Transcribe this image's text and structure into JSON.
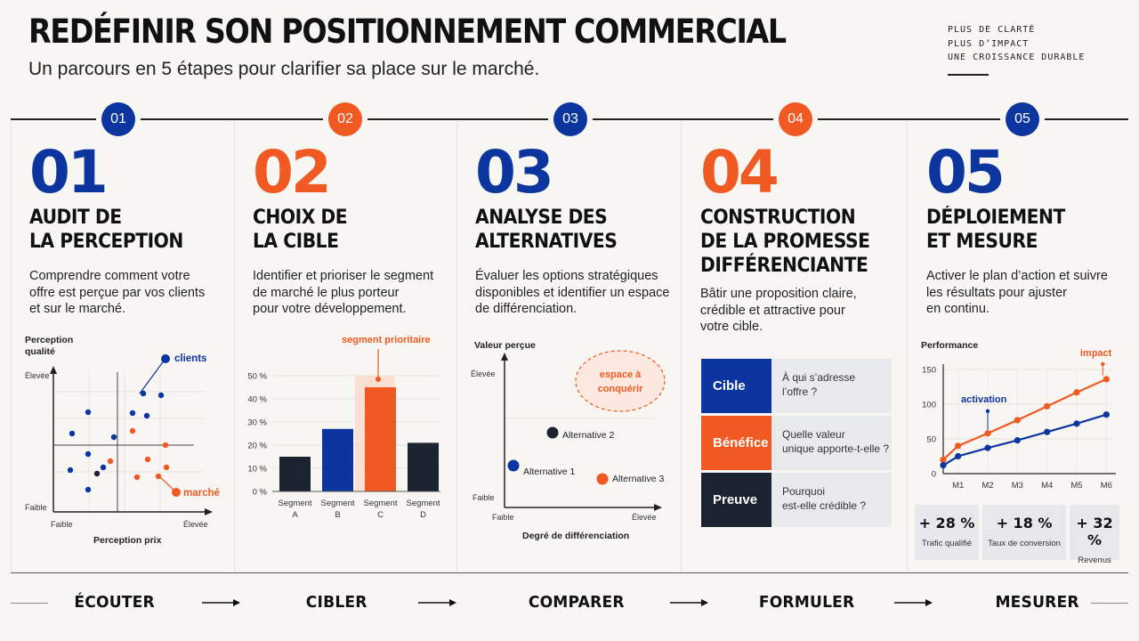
{
  "header": {
    "title": "REDÉFINIR SON POSITIONNEMENT COMMERCIAL",
    "subtitle": "Un parcours en 5 étapes pour clarifier sa place sur le marché.",
    "tagline": [
      "PLUS DE CLARTÉ",
      "PLUS D’IMPACT",
      "UNE CROISSANCE DURABLE"
    ]
  },
  "colors": {
    "blue": "#0c35a0",
    "orange": "#f05a22",
    "dark": "#1b2230"
  },
  "steps": [
    {
      "badge": "01",
      "number": "01",
      "title": "AUDIT DE\nLA PERCEPTION",
      "description": "Comprendre comment votre\noffre est perçue par vos clients\net sur le marché.",
      "accent": "blue"
    },
    {
      "badge": "02",
      "number": "02",
      "title": "CHOIX DE\nLA CIBLE",
      "description": "Identifier et prioriser le segment\nde marché le plus porteur\npour votre développement.",
      "accent": "orange"
    },
    {
      "badge": "03",
      "number": "03",
      "title": "ANALYSE DES\nALTERNATIVES",
      "description": "Évaluer les options stratégiques\ndisponibles et identifier un espace\nde différenciation.",
      "accent": "blue"
    },
    {
      "badge": "04",
      "number": "04",
      "title": "CONSTRUCTION\nDE LA PROMESSE\nDIFFÉRENCIANTE",
      "description": "Bâtir une proposition claire,\ncrédible et attractive pour\nvotre cible.",
      "accent": "orange"
    },
    {
      "badge": "05",
      "number": "05",
      "title": "DÉPLOIEMENT\nET MESURE",
      "description": "Activer le plan d’action et suivre\nles résultats pour ajuster\nen continu.",
      "accent": "blue"
    }
  ],
  "perception_map": {
    "y_title": [
      "Perception",
      "qualité"
    ],
    "y_high": "Élevée",
    "y_low": "Faible",
    "x_low": "Faible",
    "x_high": "Élevée",
    "x_title": "Perception prix",
    "clients_label": "clients",
    "market_label": "marché"
  },
  "segment_chart": {
    "annotation": "segment prioritaire",
    "y_ticks": [
      "50 %",
      "40 %",
      "30 %",
      "20 %",
      "10 %",
      "0 %"
    ],
    "categories": [
      [
        "Segment",
        "A"
      ],
      [
        "Segment",
        "B"
      ],
      [
        "Segment",
        "C"
      ],
      [
        "Segment",
        "D"
      ]
    ],
    "values": [
      15,
      27,
      45,
      21
    ],
    "bar_colors": [
      "dark",
      "blue",
      "orange",
      "dark"
    ],
    "ylim": [
      0,
      50
    ]
  },
  "alternatives_map": {
    "y_title": "Valeur perçue",
    "y_high": "Élevée",
    "y_low": "Faible",
    "x_low": "Faible",
    "x_high": "Élevée",
    "x_title": "Degré de différenciation",
    "bubble": [
      "espace à",
      "conquérir"
    ],
    "alternatives": [
      {
        "label": "Alternative 1",
        "color": "blue"
      },
      {
        "label": "Alternative 2",
        "color": "dark"
      },
      {
        "label": "Alternative 3",
        "color": "orange"
      }
    ]
  },
  "promise_cards": [
    {
      "label": "Cible",
      "text": "À qui s’adresse\nl’offre ?",
      "color": "blue"
    },
    {
      "label": "Bénéfice",
      "text": "Quelle valeur\nunique apporte-t-elle ?",
      "color": "orange"
    },
    {
      "label": "Preuve",
      "text": "Pourquoi\nest-elle crédible ?",
      "color": "dark"
    }
  ],
  "chart_data": {
    "type": "line",
    "title": "Performance",
    "categories": [
      "M1",
      "M2",
      "M3",
      "M4",
      "M5",
      "M6"
    ],
    "x_range": [
      0.5,
      6.2
    ],
    "ylim": [
      0,
      150
    ],
    "y_ticks": [
      "150",
      "100",
      "50",
      "0"
    ],
    "series": [
      {
        "values": [
          20,
          40,
          58,
          77,
          97,
          117,
          136
        ],
        "color": "orange"
      },
      {
        "values": [
          12,
          25,
          37,
          48,
          60,
          72,
          85
        ],
        "color": "blue"
      }
    ],
    "x_values": [
      0.5,
      1,
      2,
      3,
      4,
      5,
      6
    ],
    "annotations": [
      {
        "label": "activation",
        "color": "blue",
        "x": 2,
        "y": 58
      },
      {
        "label": "impact",
        "color": "orange",
        "x": 6,
        "y": 136
      }
    ]
  },
  "kpis": [
    {
      "value": "+ 28 %",
      "label": "Trafic qualifié"
    },
    {
      "value": "+ 18 %",
      "label": "Taux de conversion"
    },
    {
      "value": "+ 32 %",
      "label": "Revenus"
    }
  ],
  "bottom_words": [
    "ÉCOUTER",
    "CIBLER",
    "COMPARER",
    "FORMULER",
    "MESURER"
  ]
}
